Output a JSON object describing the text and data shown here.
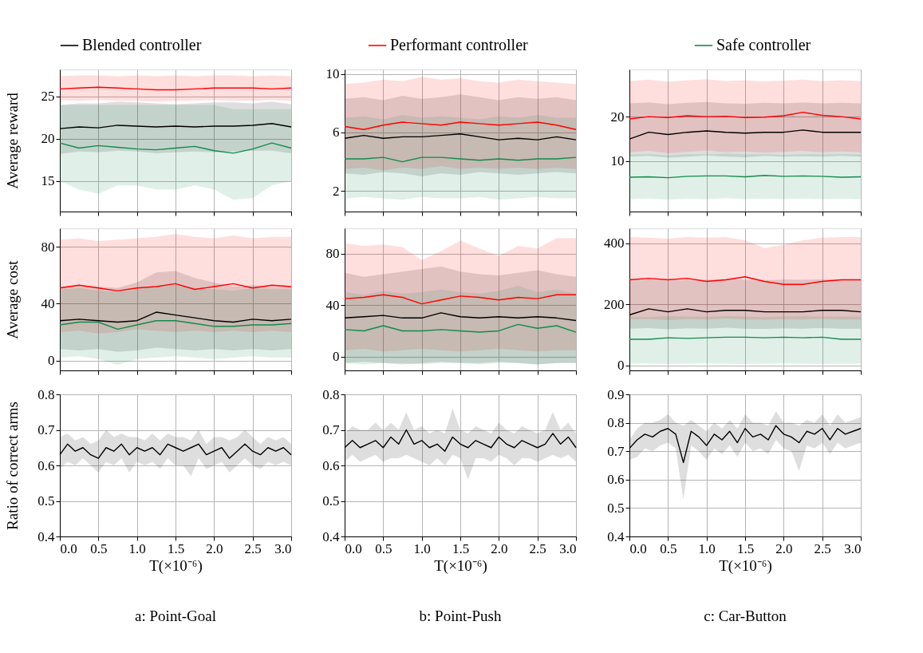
{
  "chart_data": [
    {
      "type": "line",
      "ylabel": "Average reward",
      "legend": "top",
      "grid": true,
      "tick_labels": "y",
      "xlim": [
        0,
        3
      ],
      "ylim": [
        11.4,
        28.2
      ],
      "xticks": [
        0,
        0.5,
        1,
        1.5,
        2,
        2.5,
        3
      ],
      "yticks": [
        15,
        20,
        25
      ],
      "x": [
        0,
        0.25,
        0.5,
        0.75,
        1,
        1.25,
        1.5,
        1.75,
        2,
        2.25,
        2.5,
        2.75,
        3
      ],
      "series": [
        {
          "name": "Blended controller",
          "color": "#000000",
          "values": [
            21.2,
            21.4,
            21.3,
            21.6,
            21.5,
            21.4,
            21.5,
            21.4,
            21.5,
            21.5,
            21.6,
            21.8,
            21.4
          ],
          "lower": [
            18.2,
            18.5,
            18.4,
            18.6,
            18.5,
            18.3,
            18.4,
            18.5,
            18.4,
            18.5,
            18.6,
            18.6,
            18.3
          ],
          "upper": [
            24,
            24.2,
            24.2,
            24.4,
            24.3,
            24.2,
            24.1,
            24.2,
            24.3,
            24.3,
            24.2,
            24.4,
            24.1
          ]
        },
        {
          "name": "Performant controller",
          "color": "#ff0000",
          "values": [
            25.9,
            26,
            26.1,
            26,
            25.9,
            25.8,
            25.8,
            25.9,
            26,
            26,
            26,
            25.9,
            26
          ],
          "lower": [
            24.6,
            24.5,
            24.6,
            24.5,
            24.5,
            24.4,
            24.5,
            24.5,
            24.6,
            24.5,
            24.5,
            24.6,
            24.5
          ],
          "upper": [
            27.4,
            27.5,
            27.5,
            27.4,
            27.5,
            27.4,
            27.5,
            27.4,
            27.5,
            27.5,
            27.4,
            27.5,
            27.4
          ]
        },
        {
          "name": "Safe controller",
          "color": "#138a4c",
          "values": [
            19.5,
            18.9,
            19.2,
            19,
            18.8,
            18.7,
            18.9,
            19.1,
            18.6,
            18.3,
            18.8,
            19.5,
            18.9
          ],
          "lower": [
            15,
            14,
            13.5,
            14.5,
            14.5,
            14,
            14,
            14.5,
            14,
            12.8,
            13,
            14.5,
            15
          ],
          "upper": [
            24,
            24,
            24,
            24,
            24,
            24,
            24,
            24,
            24,
            23.5,
            23.5,
            23.5,
            23.5
          ]
        }
      ]
    },
    {
      "type": "line",
      "grid": true,
      "tick_labels": "y",
      "xlim": [
        0,
        3
      ],
      "ylim": [
        0.6,
        10.3
      ],
      "xticks": [
        0,
        0.5,
        1,
        1.5,
        2,
        2.5,
        3
      ],
      "yticks": [
        2,
        6,
        10
      ],
      "x": [
        0,
        0.25,
        0.5,
        0.75,
        1,
        1.25,
        1.5,
        1.75,
        2,
        2.25,
        2.5,
        2.75,
        3
      ],
      "series": [
        {
          "color": "#000000",
          "values": [
            5.6,
            5.8,
            5.6,
            5.7,
            5.7,
            5.8,
            5.9,
            5.7,
            5.5,
            5.6,
            5.5,
            5.7,
            5.5
          ],
          "lower": [
            3.2,
            3.1,
            3.3,
            3.2,
            3,
            3.2,
            3.1,
            3.3,
            3.2,
            3.1,
            3.2,
            3.3,
            3.2
          ],
          "upper": [
            8.3,
            8.4,
            8.2,
            8.5,
            8.3,
            8.4,
            8.6,
            8.4,
            8.2,
            8.4,
            8.3,
            8.4,
            8.2
          ]
        },
        {
          "color": "#ff0000",
          "values": [
            6.4,
            6.2,
            6.5,
            6.7,
            6.6,
            6.5,
            6.7,
            6.6,
            6.5,
            6.6,
            6.7,
            6.5,
            6.2
          ],
          "lower": [
            3.5,
            3.6,
            3.4,
            3.6,
            3.5,
            3.7,
            3.5,
            3.6,
            3.5,
            3.6,
            3.5,
            3.6,
            3.5
          ],
          "upper": [
            9.3,
            9.4,
            9.6,
            9.5,
            9.8,
            9.6,
            9.7,
            9.5,
            9.4,
            9.6,
            9.5,
            9.4,
            9.3
          ]
        },
        {
          "color": "#138a4c",
          "values": [
            4.2,
            4.2,
            4.3,
            4,
            4.3,
            4.3,
            4.2,
            4.1,
            4.2,
            4.1,
            4.2,
            4.2,
            4.3
          ],
          "lower": [
            1.5,
            1.6,
            1.5,
            1.4,
            1.6,
            1.5,
            1.5,
            1.6,
            1.4,
            1.5,
            1.6,
            1.5,
            1.5
          ],
          "upper": [
            7,
            7.1,
            6.9,
            7.2,
            7,
            7.1,
            7,
            6.9,
            7.1,
            7,
            7.2,
            7,
            7
          ]
        }
      ]
    },
    {
      "type": "line",
      "grid": true,
      "tick_labels": "y",
      "xlim": [
        0,
        3
      ],
      "ylim": [
        -1.3,
        30.6
      ],
      "xticks": [
        0,
        0.5,
        1,
        1.5,
        2,
        2.5,
        3
      ],
      "yticks": [
        10,
        20
      ],
      "x": [
        0,
        0.25,
        0.5,
        0.75,
        1,
        1.25,
        1.5,
        1.75,
        2,
        2.25,
        2.5,
        2.75,
        3
      ],
      "series": [
        {
          "color": "#000000",
          "values": [
            15,
            16.5,
            16,
            16.5,
            16.8,
            16.5,
            16.3,
            16.5,
            16.5,
            17,
            16.5,
            16.5,
            16.5
          ],
          "lower": [
            11,
            11.2,
            10.8,
            11,
            11.3,
            11,
            10.9,
            11.2,
            11,
            11.1,
            11,
            11.2,
            11
          ],
          "upper": [
            23,
            23.2,
            22.8,
            23.1,
            23.3,
            23,
            22.9,
            23.1,
            23,
            23.2,
            23,
            23.1,
            23
          ]
        },
        {
          "color": "#ff0000",
          "values": [
            19.5,
            20,
            19.8,
            20.2,
            20,
            20.1,
            19.8,
            19.9,
            20.2,
            21,
            20.3,
            20,
            19.5
          ],
          "lower": [
            12,
            12.3,
            11.8,
            12.1,
            12.4,
            12,
            12.2,
            11.9,
            12.1,
            12.3,
            12,
            12.2,
            12
          ],
          "upper": [
            28,
            28.3,
            27.8,
            28.2,
            28.4,
            28,
            28.2,
            27.9,
            28.1,
            28.3,
            28,
            28.2,
            28
          ]
        },
        {
          "color": "#138a4c",
          "values": [
            6.4,
            6.5,
            6.3,
            6.6,
            6.7,
            6.7,
            6.5,
            6.8,
            6.6,
            6.7,
            6.6,
            6.4,
            6.5
          ],
          "lower": [
            1.5,
            1.6,
            1.4,
            1.6,
            1.5,
            1.7,
            1.5,
            1.6,
            1.5,
            1.6,
            1.5,
            1.6,
            1.5
          ],
          "upper": [
            11.5,
            11.6,
            11.3,
            11.6,
            11.5,
            11.7,
            11.5,
            11.6,
            11.4,
            11.6,
            11.5,
            11.6,
            11.5
          ]
        }
      ]
    },
    {
      "type": "line",
      "ylabel": "Average cost",
      "grid": true,
      "tick_labels": "y",
      "xlim": [
        0,
        3
      ],
      "ylim": [
        -7,
        93
      ],
      "xticks": [
        0,
        0.5,
        1,
        1.5,
        2,
        2.5,
        3
      ],
      "yticks": [
        0,
        40,
        80
      ],
      "x": [
        0,
        0.25,
        0.5,
        0.75,
        1,
        1.25,
        1.5,
        1.75,
        2,
        2.25,
        2.5,
        2.75,
        3
      ],
      "series": [
        {
          "color": "#000000",
          "values": [
            28,
            29,
            28,
            27,
            28,
            34,
            32,
            30,
            28,
            27,
            29,
            28,
            29
          ],
          "lower": [
            8,
            7,
            8,
            6,
            7,
            9,
            8,
            7,
            8,
            7,
            8,
            7,
            8
          ],
          "upper": [
            52,
            53,
            52,
            51,
            55,
            62,
            63,
            58,
            55,
            52,
            53,
            52,
            52
          ]
        },
        {
          "color": "#ff0000",
          "values": [
            51,
            53,
            51,
            49,
            51,
            52,
            54,
            50,
            52,
            54,
            51,
            53,
            52
          ],
          "lower": [
            20,
            21,
            19,
            20,
            22,
            21,
            20,
            21,
            20,
            21,
            20,
            21,
            20
          ],
          "upper": [
            85,
            86,
            84,
            85,
            86,
            87,
            89,
            87,
            86,
            88,
            86,
            87,
            87
          ]
        },
        {
          "color": "#138a4c",
          "values": [
            25,
            27,
            27,
            22,
            25,
            28,
            28,
            26,
            24,
            24,
            25,
            25,
            26
          ],
          "lower": [
            2,
            3,
            1,
            -3,
            1,
            2,
            3,
            2,
            1,
            2,
            3,
            2,
            2
          ],
          "upper": [
            50,
            51,
            49,
            48,
            50,
            52,
            53,
            51,
            50,
            49,
            51,
            50,
            50
          ]
        }
      ]
    },
    {
      "type": "line",
      "grid": true,
      "tick_labels": "y",
      "xlim": [
        0,
        3
      ],
      "ylim": [
        -10.7,
        99.6
      ],
      "xticks": [
        0,
        0.5,
        1,
        1.5,
        2,
        2.5,
        3
      ],
      "yticks": [
        0,
        40,
        80
      ],
      "x": [
        0,
        0.25,
        0.5,
        0.75,
        1,
        1.25,
        1.5,
        1.75,
        2,
        2.25,
        2.5,
        2.75,
        3
      ],
      "series": [
        {
          "color": "#000000",
          "values": [
            30,
            31,
            32,
            30,
            30,
            34,
            31,
            30,
            31,
            30,
            31,
            30,
            28
          ],
          "lower": [
            -5,
            -4,
            -5,
            -6,
            -5,
            -4,
            -5,
            -5,
            -4,
            -5,
            -6,
            -5,
            -5
          ],
          "upper": [
            65,
            62,
            64,
            66,
            68,
            70,
            66,
            64,
            63,
            65,
            67,
            64,
            62
          ]
        },
        {
          "color": "#ff0000",
          "values": [
            45,
            46,
            48,
            46,
            41,
            44,
            47,
            46,
            44,
            46,
            45,
            48,
            48
          ],
          "lower": [
            5,
            6,
            4,
            5,
            6,
            5,
            4,
            5,
            6,
            5,
            4,
            5,
            5
          ],
          "upper": [
            88,
            86,
            87,
            85,
            75,
            82,
            90,
            84,
            78,
            86,
            84,
            92,
            92
          ]
        },
        {
          "color": "#138a4c",
          "values": [
            21,
            20,
            24,
            20,
            20,
            21,
            20,
            19,
            20,
            25,
            22,
            24,
            19
          ],
          "lower": [
            -5,
            -6,
            -5,
            -5,
            -6,
            -5,
            -5,
            -6,
            -5,
            -5,
            -6,
            -5,
            -5
          ],
          "upper": [
            50,
            48,
            51,
            49,
            50,
            52,
            50,
            49,
            51,
            55,
            50,
            52,
            49
          ]
        }
      ]
    },
    {
      "type": "line",
      "grid": true,
      "tick_labels": "y",
      "xlim": [
        0,
        3
      ],
      "ylim": [
        -17,
        449
      ],
      "xticks": [
        0,
        0.5,
        1,
        1.5,
        2,
        2.5,
        3
      ],
      "yticks": [
        0,
        200,
        400
      ],
      "x": [
        0,
        0.25,
        0.5,
        0.75,
        1,
        1.25,
        1.5,
        1.75,
        2,
        2.25,
        2.5,
        2.75,
        3
      ],
      "series": [
        {
          "color": "#000000",
          "values": [
            165,
            185,
            175,
            185,
            175,
            180,
            180,
            175,
            175,
            175,
            180,
            180,
            175
          ],
          "lower": [
            120,
            122,
            118,
            121,
            120,
            123,
            120,
            119,
            121,
            120,
            122,
            120,
            120
          ],
          "upper": [
            280,
            282,
            278,
            281,
            280,
            283,
            280,
            279,
            281,
            280,
            282,
            280,
            280
          ]
        },
        {
          "color": "#ff0000",
          "values": [
            280,
            285,
            280,
            285,
            275,
            280,
            290,
            275,
            265,
            265,
            275,
            280,
            280
          ],
          "lower": [
            150,
            152,
            148,
            151,
            150,
            153,
            150,
            149,
            151,
            150,
            152,
            150,
            150
          ],
          "upper": [
            420,
            418,
            415,
            420,
            418,
            420,
            410,
            385,
            395,
            410,
            418,
            420,
            420
          ]
        },
        {
          "color": "#138a4c",
          "values": [
            85,
            85,
            90,
            88,
            90,
            92,
            92,
            90,
            92,
            90,
            92,
            85,
            85
          ],
          "lower": [
            5,
            6,
            4,
            5,
            6,
            5,
            4,
            5,
            6,
            5,
            4,
            5,
            5
          ],
          "upper": [
            160,
            158,
            161,
            160,
            159,
            161,
            160,
            158,
            160,
            161,
            159,
            160,
            160
          ]
        }
      ]
    },
    {
      "type": "line",
      "ylabel": "Ratio of correct arms",
      "xlabel": "T(×10⁻⁶)",
      "annotations": [
        "a: Point-Goal"
      ],
      "grid": true,
      "xlim": [
        0,
        3
      ],
      "ylim": [
        0.4,
        0.8
      ],
      "xticks": [
        {
          "value": 0,
          "label": "0.0"
        },
        0.5,
        {
          "value": 1,
          "label": "1.0"
        },
        1.5,
        {
          "value": 2,
          "label": "2.0"
        },
        2.5,
        {
          "value": 3,
          "label": "3.0"
        }
      ],
      "yticks": [
        0.4,
        0.5,
        0.6,
        0.7,
        0.8
      ],
      "x": [
        0,
        0.1,
        0.2,
        0.3,
        0.4,
        0.5,
        0.6,
        0.7,
        0.8,
        0.9,
        1,
        1.1,
        1.2,
        1.3,
        1.4,
        1.5,
        1.6,
        1.7,
        1.8,
        1.9,
        2,
        2.1,
        2.2,
        2.3,
        2.4,
        2.5,
        2.6,
        2.7,
        2.8,
        2.9,
        3
      ],
      "series": [
        {
          "color": "#000000",
          "values": [
            0.63,
            0.66,
            0.64,
            0.65,
            0.63,
            0.62,
            0.65,
            0.64,
            0.66,
            0.63,
            0.65,
            0.64,
            0.65,
            0.63,
            0.66,
            0.65,
            0.64,
            0.65,
            0.66,
            0.63,
            0.64,
            0.65,
            0.62,
            0.64,
            0.66,
            0.64,
            0.63,
            0.65,
            0.64,
            0.65,
            0.63
          ],
          "lower": [
            0.59,
            0.61,
            0.6,
            0.62,
            0.6,
            0.58,
            0.61,
            0.6,
            0.62,
            0.58,
            0.61,
            0.6,
            0.61,
            0.59,
            0.62,
            0.6,
            0.6,
            0.57,
            0.62,
            0.59,
            0.6,
            0.61,
            0.58,
            0.6,
            0.62,
            0.6,
            0.59,
            0.61,
            0.6,
            0.61,
            0.6
          ],
          "upper": [
            0.68,
            0.69,
            0.67,
            0.68,
            0.66,
            0.67,
            0.7,
            0.68,
            0.69,
            0.68,
            0.68,
            0.67,
            0.69,
            0.67,
            0.69,
            0.68,
            0.68,
            0.67,
            0.7,
            0.66,
            0.68,
            0.68,
            0.67,
            0.68,
            0.7,
            0.68,
            0.66,
            0.68,
            0.67,
            0.68,
            0.66
          ]
        }
      ]
    },
    {
      "type": "line",
      "xlabel": "T(×10⁻⁶)",
      "annotations": [
        "b: Point-Push"
      ],
      "grid": true,
      "xlim": [
        0,
        3
      ],
      "ylim": [
        0.4,
        0.8
      ],
      "xticks": [
        {
          "value": 0,
          "label": "0.0"
        },
        0.5,
        {
          "value": 1,
          "label": "1.0"
        },
        1.5,
        {
          "value": 2,
          "label": "2.0"
        },
        2.5,
        {
          "value": 3,
          "label": "3.0"
        }
      ],
      "yticks": [
        0.4,
        0.5,
        0.6,
        0.7,
        0.8
      ],
      "x": [
        0,
        0.1,
        0.2,
        0.3,
        0.4,
        0.5,
        0.6,
        0.7,
        0.8,
        0.9,
        1,
        1.1,
        1.2,
        1.3,
        1.4,
        1.5,
        1.6,
        1.7,
        1.8,
        1.9,
        2,
        2.1,
        2.2,
        2.3,
        2.4,
        2.5,
        2.6,
        2.7,
        2.8,
        2.9,
        3
      ],
      "series": [
        {
          "color": "#000000",
          "values": [
            0.65,
            0.67,
            0.65,
            0.66,
            0.67,
            0.65,
            0.68,
            0.66,
            0.7,
            0.66,
            0.67,
            0.65,
            0.66,
            0.64,
            0.68,
            0.66,
            0.65,
            0.67,
            0.66,
            0.65,
            0.68,
            0.66,
            0.65,
            0.67,
            0.66,
            0.65,
            0.66,
            0.69,
            0.66,
            0.68,
            0.65
          ],
          "lower": [
            0.61,
            0.63,
            0.61,
            0.62,
            0.63,
            0.61,
            0.62,
            0.62,
            0.63,
            0.62,
            0.61,
            0.6,
            0.62,
            0.6,
            0.63,
            0.62,
            0.56,
            0.62,
            0.62,
            0.61,
            0.63,
            0.62,
            0.6,
            0.62,
            0.62,
            0.61,
            0.62,
            0.63,
            0.62,
            0.63,
            0.61
          ],
          "upper": [
            0.69,
            0.71,
            0.7,
            0.7,
            0.72,
            0.7,
            0.72,
            0.7,
            0.75,
            0.7,
            0.71,
            0.69,
            0.7,
            0.69,
            0.76,
            0.7,
            0.69,
            0.71,
            0.7,
            0.69,
            0.72,
            0.7,
            0.69,
            0.71,
            0.7,
            0.69,
            0.7,
            0.75,
            0.7,
            0.72,
            0.69
          ]
        }
      ]
    },
    {
      "type": "line",
      "xlabel": "T(×10⁻⁶)",
      "annotations": [
        "c: Car-Button"
      ],
      "grid": true,
      "xlim": [
        0,
        3
      ],
      "ylim": [
        0.4,
        0.9
      ],
      "xticks": [
        {
          "value": 0,
          "label": "0.0"
        },
        0.5,
        {
          "value": 1,
          "label": "1.0"
        },
        1.5,
        {
          "value": 2,
          "label": "2.0"
        },
        2.5,
        {
          "value": 3,
          "label": "3.0"
        }
      ],
      "yticks": [
        0.4,
        0.5,
        0.6,
        0.7,
        0.8,
        0.9
      ],
      "x": [
        0,
        0.1,
        0.2,
        0.3,
        0.4,
        0.5,
        0.6,
        0.7,
        0.8,
        0.9,
        1,
        1.1,
        1.2,
        1.3,
        1.4,
        1.5,
        1.6,
        1.7,
        1.8,
        1.9,
        2,
        2.1,
        2.2,
        2.3,
        2.4,
        2.5,
        2.6,
        2.7,
        2.8,
        2.9,
        3
      ],
      "series": [
        {
          "color": "#000000",
          "values": [
            0.71,
            0.74,
            0.76,
            0.75,
            0.77,
            0.78,
            0.76,
            0.66,
            0.77,
            0.75,
            0.72,
            0.76,
            0.74,
            0.77,
            0.73,
            0.78,
            0.75,
            0.76,
            0.74,
            0.79,
            0.76,
            0.75,
            0.73,
            0.77,
            0.76,
            0.78,
            0.74,
            0.78,
            0.76,
            0.77,
            0.78
          ],
          "lower": [
            0.67,
            0.68,
            0.71,
            0.7,
            0.72,
            0.73,
            0.71,
            0.53,
            0.72,
            0.7,
            0.67,
            0.71,
            0.69,
            0.72,
            0.68,
            0.73,
            0.7,
            0.71,
            0.69,
            0.74,
            0.71,
            0.7,
            0.63,
            0.72,
            0.71,
            0.73,
            0.69,
            0.73,
            0.71,
            0.72,
            0.73
          ],
          "upper": [
            0.74,
            0.78,
            0.8,
            0.8,
            0.81,
            0.83,
            0.8,
            0.79,
            0.81,
            0.79,
            0.77,
            0.8,
            0.78,
            0.81,
            0.78,
            0.83,
            0.8,
            0.8,
            0.79,
            0.84,
            0.8,
            0.8,
            0.79,
            0.81,
            0.8,
            0.83,
            0.79,
            0.83,
            0.8,
            0.81,
            0.82
          ]
        }
      ]
    }
  ]
}
